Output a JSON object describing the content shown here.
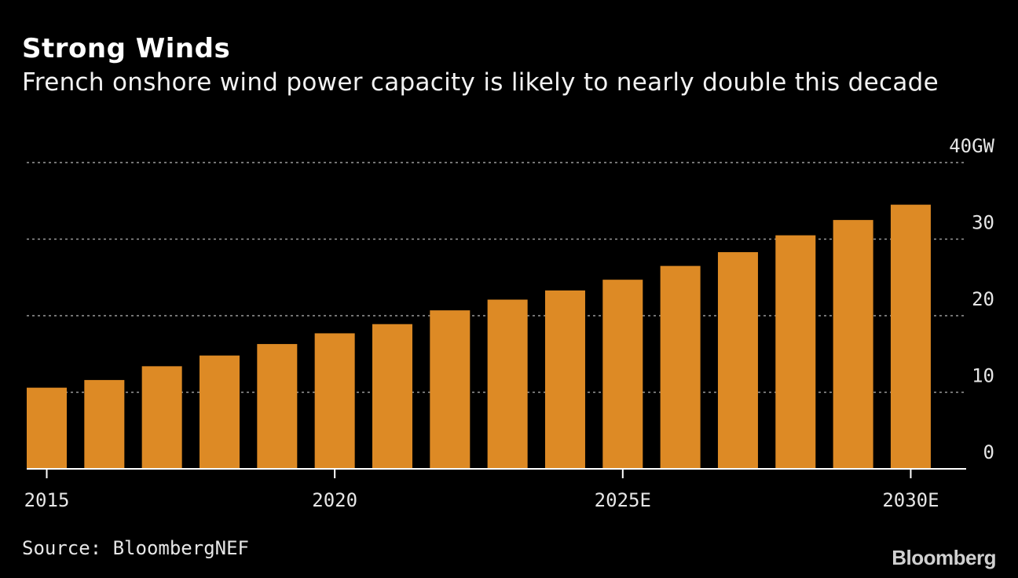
{
  "title": "Strong Winds",
  "subtitle": "French onshore wind power capacity is likely to nearly double this decade",
  "source": "Source: BloombergNEF",
  "brand": "Bloomberg",
  "colors": {
    "background": "#000000",
    "bar": "#dd8a25",
    "grid": "#9a9a9a",
    "axis": "#ffffff",
    "text": "#e6e6e6"
  },
  "chart_data": {
    "type": "bar",
    "title": "Strong Winds",
    "subtitle": "French onshore wind power capacity is likely to nearly double this decade",
    "xlabel": "",
    "ylabel": "",
    "unit": "GW",
    "ylim": [
      0,
      40
    ],
    "y_ticks": [
      {
        "value": 0,
        "label": "0"
      },
      {
        "value": 10,
        "label": "10"
      },
      {
        "value": 20,
        "label": "20"
      },
      {
        "value": 30,
        "label": "30"
      },
      {
        "value": 40,
        "label": "40GW"
      }
    ],
    "x_ticks": [
      {
        "category": "2015",
        "label": "2015"
      },
      {
        "category": "2020",
        "label": "2020"
      },
      {
        "category": "2025",
        "label": "2025E"
      },
      {
        "category": "2030",
        "label": "2030E"
      }
    ],
    "categories": [
      "2015",
      "2016",
      "2017",
      "2018",
      "2019",
      "2020",
      "2021",
      "2022",
      "2023",
      "2024",
      "2025",
      "2026",
      "2027",
      "2028",
      "2029",
      "2030"
    ],
    "values": [
      10.6,
      11.6,
      13.4,
      14.8,
      16.3,
      17.7,
      18.9,
      20.7,
      22.1,
      23.3,
      24.7,
      26.5,
      28.3,
      30.5,
      32.5,
      34.5
    ],
    "grid": true
  }
}
